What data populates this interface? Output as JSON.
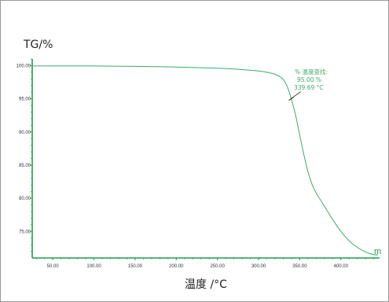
{
  "chart_data": {
    "type": "line",
    "ylabel": "TG/%",
    "xlabel": "温度 /°C",
    "xlim": [
      25,
      447
    ],
    "ylim": [
      71,
      101
    ],
    "grid": false,
    "x_ticks": [
      "50.00",
      "100.00",
      "150.00",
      "200.00",
      "250.00",
      "300.00",
      "350.00",
      "400.00"
    ],
    "y_ticks": [
      "75.00",
      "80.00",
      "85.00",
      "90.00",
      "95.00",
      "100.00"
    ],
    "series": [
      {
        "name": "",
        "color": "#3daa6a",
        "x": [
          25,
          100,
          150,
          200,
          250,
          280,
          300,
          310,
          320,
          325,
          330,
          335,
          339.69,
          345,
          350,
          355,
          360,
          365,
          370,
          375,
          380,
          390,
          400,
          410,
          420,
          430,
          440,
          445
        ],
        "y": [
          99.95,
          99.95,
          99.88,
          99.78,
          99.6,
          99.4,
          99.2,
          99.0,
          98.7,
          98.4,
          97.9,
          96.8,
          95.0,
          92.5,
          89.5,
          86.6,
          84.0,
          82.1,
          80.8,
          79.8,
          78.8,
          76.8,
          75.0,
          73.6,
          72.6,
          71.9,
          71.5,
          71.45
        ]
      }
    ],
    "annotation": {
      "title": "% 温度查找:",
      "value_y": "95.00 %",
      "value_x": "339.69 °C",
      "x": 339.69,
      "y": 95.0,
      "color": "#3daa6a"
    },
    "end_label": "m",
    "colors": {
      "axis": "#1f9e52",
      "curve": "#3daa6a",
      "text": "#333333"
    }
  }
}
